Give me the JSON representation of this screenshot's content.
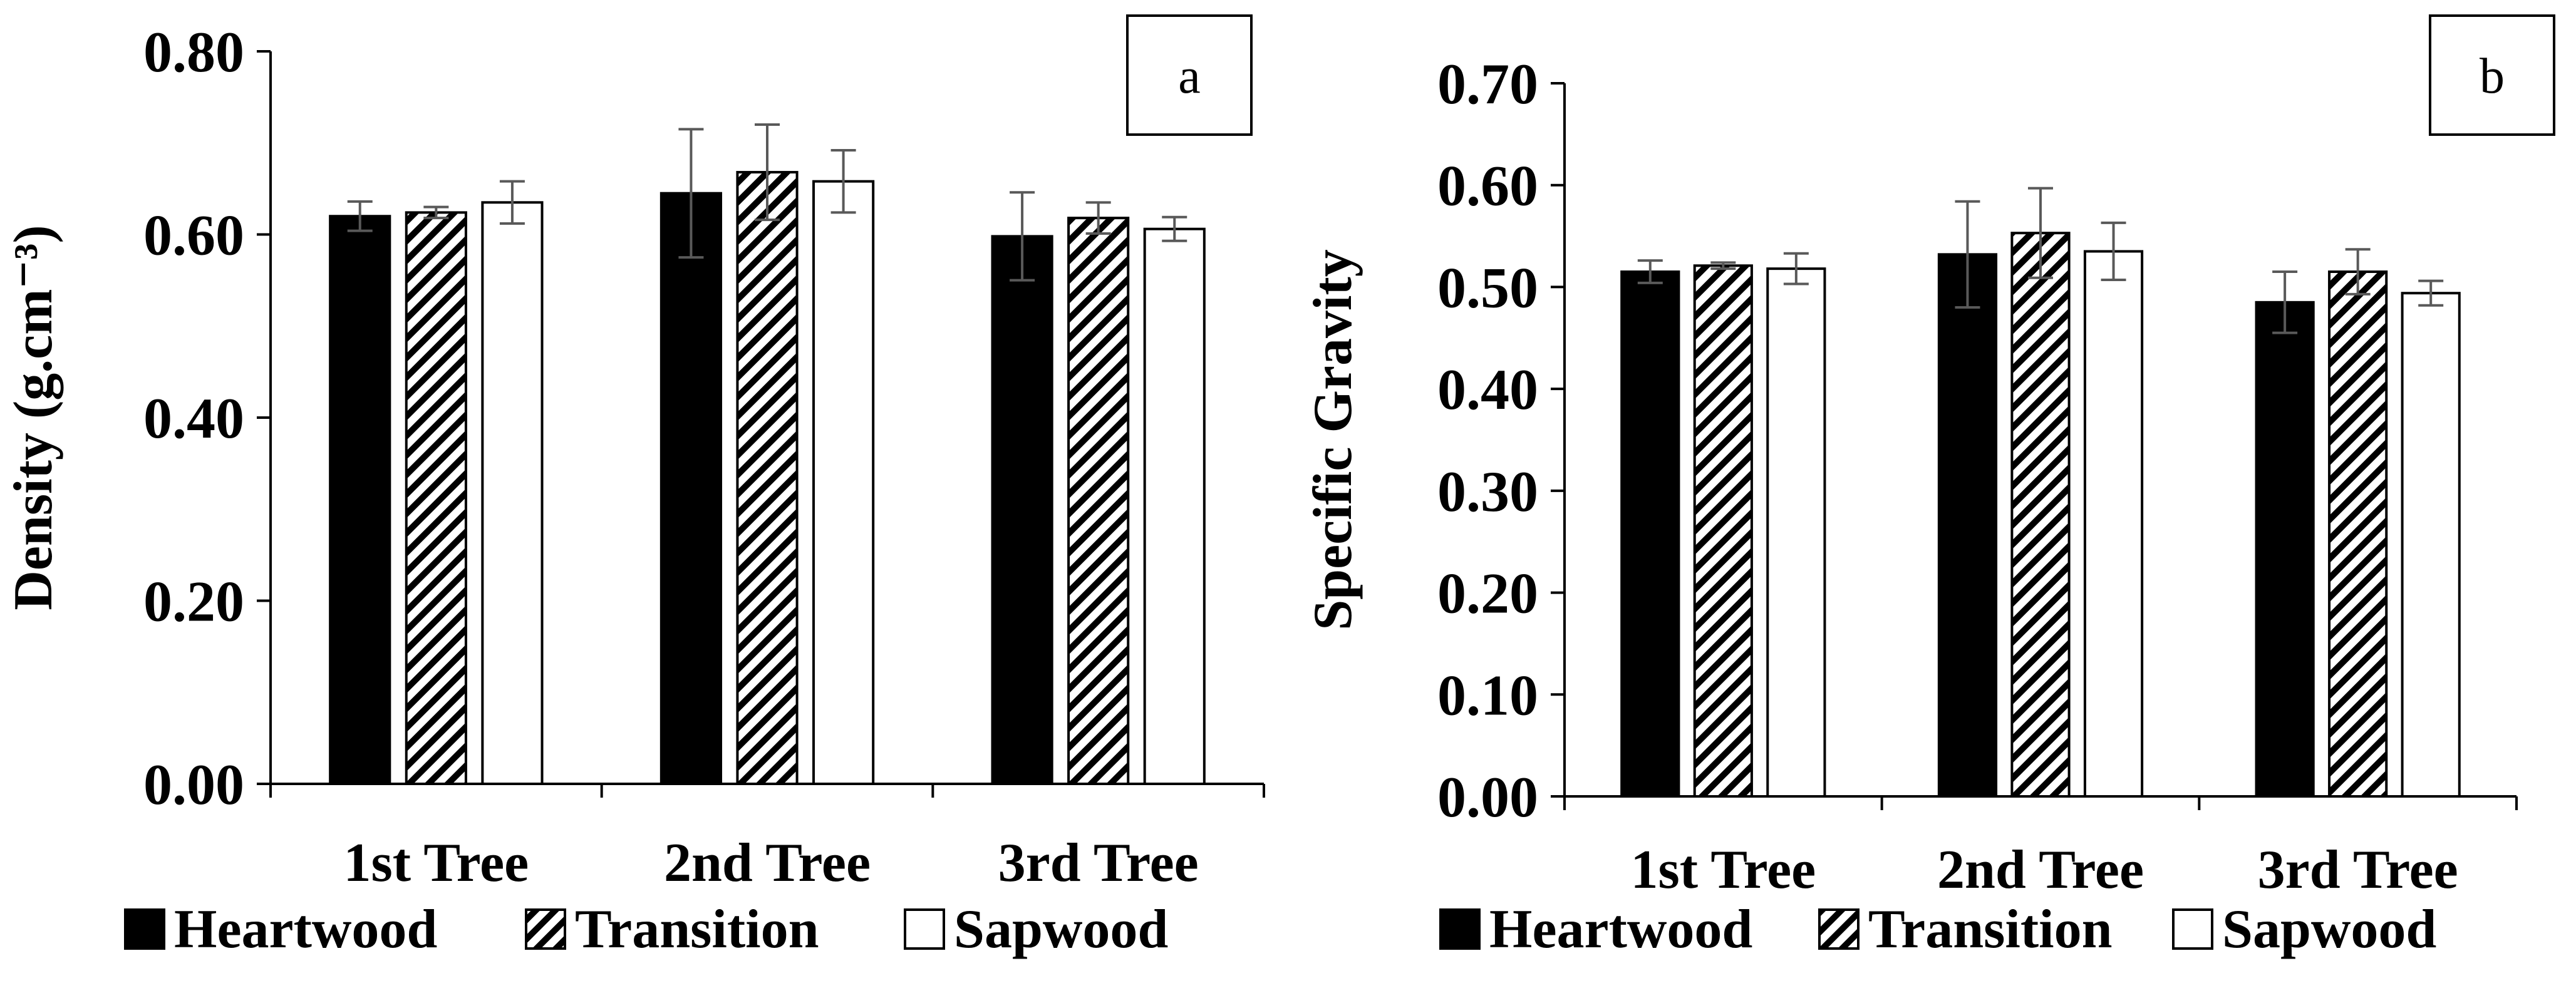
{
  "chart_data": [
    {
      "type": "bar",
      "panel_label": "a",
      "ylabel": "Density (g.cm⁻³)",
      "ylim": [
        0,
        0.8
      ],
      "yticks": [
        "0.00",
        "0.20",
        "0.40",
        "0.60",
        "0.80"
      ],
      "categories": [
        "1st Tree",
        "2nd Tree",
        "3rd Tree"
      ],
      "series": [
        {
          "name": "Heartwood",
          "values": [
            0.62,
            0.645,
            0.598
          ],
          "errors": [
            0.016,
            0.07,
            0.048
          ]
        },
        {
          "name": "Transition",
          "values": [
            0.624,
            0.668,
            0.618
          ],
          "errors": [
            0.006,
            0.052,
            0.017
          ]
        },
        {
          "name": "Sapwood",
          "values": [
            0.635,
            0.658,
            0.606
          ],
          "errors": [
            0.023,
            0.034,
            0.013
          ]
        }
      ],
      "grid": false,
      "legend_position": "bottom"
    },
    {
      "type": "bar",
      "panel_label": "b",
      "ylabel": "Specific Gravity",
      "ylim": [
        0,
        0.7
      ],
      "yticks": [
        "0.00",
        "0.10",
        "0.20",
        "0.30",
        "0.40",
        "0.50",
        "0.60",
        "0.70"
      ],
      "categories": [
        "1st Tree",
        "2nd Tree",
        "3rd Tree"
      ],
      "series": [
        {
          "name": "Heartwood",
          "values": [
            0.515,
            0.532,
            0.485
          ],
          "errors": [
            0.011,
            0.052,
            0.03
          ]
        },
        {
          "name": "Transition",
          "values": [
            0.521,
            0.553,
            0.515
          ],
          "errors": [
            0.003,
            0.044,
            0.022
          ]
        },
        {
          "name": "Sapwood",
          "values": [
            0.518,
            0.535,
            0.494
          ],
          "errors": [
            0.015,
            0.028,
            0.012
          ]
        }
      ],
      "grid": false,
      "legend_position": "bottom"
    }
  ],
  "series_style": {
    "Heartwood": "solid-black",
    "Transition": "diagonal-hatch",
    "Sapwood": "white"
  }
}
